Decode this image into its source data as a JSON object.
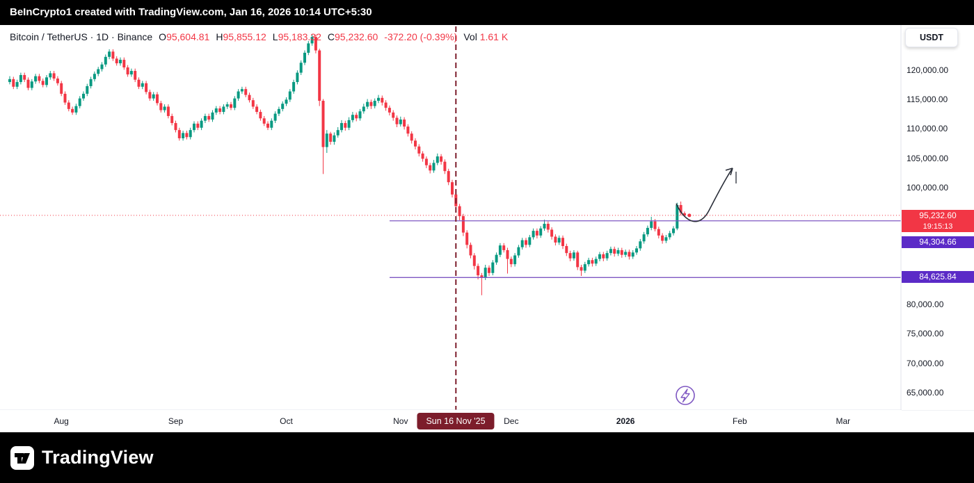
{
  "top_bar": {
    "text": "BeInCrypto1 created with TradingView.com, Jan 16, 2026 10:14 UTC+5:30"
  },
  "header": {
    "symbol": "Bitcoin / TetherUS · 1D · Binance",
    "o_label": "O",
    "o": "95,604.81",
    "h_label": "H",
    "h": "95,855.12",
    "l_label": "L",
    "l": "95,183.32",
    "c_label": "C",
    "c": "95,232.60",
    "change": "-372.20 (-0.39%)",
    "vol_label": "Vol",
    "vol": "1.61 K"
  },
  "currency_button": "USDT",
  "price_axis": {
    "ticks": [
      {
        "value": 120000,
        "label": "120,000.00"
      },
      {
        "value": 115000,
        "label": "115,000.00"
      },
      {
        "value": 110000,
        "label": "110,000.00"
      },
      {
        "value": 105000,
        "label": "105,000.00"
      },
      {
        "value": 100000,
        "label": "100,000.00"
      },
      {
        "value": 80000,
        "label": "80,000.00"
      },
      {
        "value": 75000,
        "label": "75,000.00"
      },
      {
        "value": 70000,
        "label": "70,000.00"
      },
      {
        "value": 65000,
        "label": "65,000.00"
      }
    ]
  },
  "badges": {
    "current_price": "95,232.60",
    "countdown": "19:15:13",
    "level1": "94,304.66",
    "level2": "84,625.84"
  },
  "time_axis": {
    "ticks": [
      {
        "label": "Aug",
        "day": 14
      },
      {
        "label": "Sep",
        "day": 45
      },
      {
        "label": "Oct",
        "day": 75
      },
      {
        "label": "Nov",
        "day": 106
      },
      {
        "label": "Dec",
        "day": 136
      },
      {
        "label": "2026",
        "day": 167,
        "bold": true
      },
      {
        "label": "Feb",
        "day": 198
      },
      {
        "label": "Mar",
        "day": 226
      }
    ],
    "date_badge": "Sun 16 Nov '25"
  },
  "footer": {
    "brand": "TradingView"
  },
  "colors": {
    "up": "#089981",
    "down": "#f23645",
    "level_purple": "#7e57c2",
    "badge_purple": "#5b2bc7",
    "marker_dark_red": "#7c1d2b",
    "axis_line": "#e0e3eb",
    "text_dark": "#131722"
  },
  "chart_data": {
    "type": "candlestick",
    "instrument": "Bitcoin / TetherUS (BTC/USDT)",
    "interval": "1D",
    "exchange": "Binance",
    "values_in": "thousands of USDT, OHLC per daily candle, estimated from chart",
    "ylim_usdt": [
      62000,
      127500
    ],
    "current_price_usdt": 95232.6,
    "levels_usdt": [
      94304.66,
      84625.84
    ],
    "marked_date": {
      "label": "Sun 16 Nov '25",
      "candle_index": 121
    },
    "last_candle_ohlc": {
      "o": 95604.81,
      "h": 95855.12,
      "l": 95183.32,
      "c": 95232.6,
      "change": "-372.20 (-0.39%)",
      "volume": "1.61 K"
    },
    "annotations": {
      "arrow": "hand-drawn curved arrow projecting price upward from ~95,000 toward ~105,000",
      "marker": "purple lightning-bolt circle icon below the Jan 2026 candles",
      "current_price_line": "red dotted horizontal line at 95,232.60",
      "vertical_line": "dark-red dashed vertical line at Sun 16 Nov '25"
    },
    "candles": [
      [
        118,
        119,
        117.6,
        118.5
      ],
      [
        118.5,
        118.9,
        116.8,
        117.2
      ],
      [
        117.2,
        118.4,
        116.8,
        118
      ],
      [
        118,
        119.6,
        117.6,
        119.2
      ],
      [
        119.2,
        119.6,
        118,
        118.4
      ],
      [
        118.4,
        118.8,
        116.6,
        117
      ],
      [
        117,
        118.5,
        116.6,
        118.1
      ],
      [
        118.1,
        119.4,
        117.7,
        119
      ],
      [
        119,
        119.4,
        117.8,
        118.2
      ],
      [
        118.2,
        118.6,
        117.1,
        117.5
      ],
      [
        117.5,
        119.2,
        117.1,
        118.8
      ],
      [
        118.8,
        119.9,
        118.4,
        119.5
      ],
      [
        119.5,
        119.9,
        118.2,
        118.6
      ],
      [
        118.6,
        119,
        117.4,
        117.8
      ],
      [
        117.8,
        118.2,
        115.6,
        116
      ],
      [
        116,
        116.4,
        114.1,
        114.5
      ],
      [
        114.5,
        114.9,
        113,
        113.4
      ],
      [
        113.4,
        113.8,
        112.4,
        112.8
      ],
      [
        112.8,
        114.3,
        112.4,
        113.9
      ],
      [
        113.9,
        115.6,
        113.5,
        115.2
      ],
      [
        115.2,
        116.4,
        114.8,
        116
      ],
      [
        116,
        117.7,
        115.6,
        117.3
      ],
      [
        117.3,
        118.9,
        116.9,
        118.5
      ],
      [
        118.5,
        119.8,
        118.1,
        119.4
      ],
      [
        119.4,
        120.6,
        119,
        120.2
      ],
      [
        120.2,
        121.4,
        119.8,
        121
      ],
      [
        121,
        122.7,
        120.6,
        122.3
      ],
      [
        122.3,
        123.6,
        121.9,
        123.2
      ],
      [
        123.2,
        123.6,
        121.6,
        122
      ],
      [
        122,
        122.4,
        120.8,
        121.2
      ],
      [
        121.2,
        122.2,
        120.8,
        121.8
      ],
      [
        121.8,
        122.2,
        120.1,
        120.5
      ],
      [
        120.5,
        120.9,
        118.9,
        119.3
      ],
      [
        119.3,
        120.3,
        118.9,
        119.9
      ],
      [
        119.9,
        120.3,
        118,
        118.4
      ],
      [
        118.4,
        118.8,
        116.8,
        117.2
      ],
      [
        117.2,
        118.2,
        116.8,
        117.8
      ],
      [
        117.8,
        118.2,
        115.9,
        116.3
      ],
      [
        116.3,
        116.7,
        114.8,
        115.2
      ],
      [
        115.2,
        116.3,
        114.8,
        115.9
      ],
      [
        115.9,
        116.3,
        114,
        114.4
      ],
      [
        114.4,
        114.8,
        112.8,
        113.2
      ],
      [
        113.2,
        114.2,
        112.8,
        113.8
      ],
      [
        113.8,
        114.2,
        111.8,
        112.2
      ],
      [
        112.2,
        112.6,
        110.6,
        111
      ],
      [
        111,
        111.4,
        109.4,
        109.8
      ],
      [
        109.8,
        110.2,
        108,
        108.4
      ],
      [
        108.4,
        109.7,
        108,
        109.3
      ],
      [
        109.3,
        109.7,
        108.2,
        108.6
      ],
      [
        108.6,
        110.2,
        108.2,
        109.8
      ],
      [
        109.8,
        111.3,
        109.4,
        110.9
      ],
      [
        110.9,
        111.3,
        109.8,
        110.2
      ],
      [
        110.2,
        111.8,
        109.8,
        111.4
      ],
      [
        111.4,
        112.6,
        111,
        112.2
      ],
      [
        112.2,
        112.6,
        111.2,
        111.6
      ],
      [
        111.6,
        113.2,
        111.2,
        112.8
      ],
      [
        112.8,
        113.9,
        112.4,
        113.5
      ],
      [
        113.5,
        113.9,
        112.5,
        112.9
      ],
      [
        112.9,
        114.2,
        112.5,
        113.8
      ],
      [
        113.8,
        114.6,
        113.4,
        114.2
      ],
      [
        114.2,
        114.6,
        113.2,
        113.6
      ],
      [
        113.6,
        115.6,
        113.2,
        115.2
      ],
      [
        115.2,
        116.8,
        114.8,
        116.4
      ],
      [
        116.4,
        117.2,
        116,
        116.8
      ],
      [
        116.8,
        117.2,
        115.4,
        115.8
      ],
      [
        115.8,
        116.2,
        114.5,
        114.9
      ],
      [
        114.9,
        115.3,
        113.4,
        113.8
      ],
      [
        113.8,
        114.2,
        112.5,
        112.9
      ],
      [
        112.9,
        113.3,
        111.4,
        111.8
      ],
      [
        111.8,
        112.2,
        110.5,
        110.9
      ],
      [
        110.9,
        111.3,
        109.8,
        110.2
      ],
      [
        110.2,
        111.8,
        109.8,
        111.4
      ],
      [
        111.4,
        113,
        111,
        112.6
      ],
      [
        112.6,
        113.8,
        112.2,
        113.4
      ],
      [
        113.4,
        114.7,
        113,
        114.3
      ],
      [
        114.3,
        115.4,
        113.9,
        115
      ],
      [
        115,
        116.8,
        114.6,
        116.4
      ],
      [
        116.4,
        118.4,
        116,
        118
      ],
      [
        118,
        120,
        117.6,
        119.6
      ],
      [
        119.6,
        121.7,
        119.2,
        121.3
      ],
      [
        121.3,
        123.4,
        120.9,
        123
      ],
      [
        123,
        125,
        122.6,
        124.6
      ],
      [
        124.6,
        126.2,
        124.2,
        125.7
      ],
      [
        125.7,
        126.1,
        122.9,
        123.4
      ],
      [
        123.4,
        123.7,
        113.9,
        114.8
      ],
      [
        114.8,
        115.1,
        102.3,
        106.9
      ],
      [
        106.9,
        109.8,
        105.9,
        109.2
      ],
      [
        109.2,
        109.5,
        107.3,
        107.8
      ],
      [
        107.8,
        109.4,
        107.3,
        108.9
      ],
      [
        108.9,
        110.3,
        108.5,
        109.8
      ],
      [
        109.8,
        111.5,
        109.4,
        111
      ],
      [
        111,
        111.4,
        109.7,
        110.2
      ],
      [
        110.2,
        112,
        109.8,
        111.5
      ],
      [
        111.5,
        112.9,
        111.1,
        112.4
      ],
      [
        112.4,
        112.8,
        111.3,
        111.8
      ],
      [
        111.8,
        113.4,
        111.4,
        113
      ],
      [
        113,
        114.3,
        112.6,
        113.8
      ],
      [
        113.8,
        115.1,
        113.4,
        114.6
      ],
      [
        114.6,
        115,
        113.4,
        113.9
      ],
      [
        113.9,
        115.2,
        113.5,
        114.8
      ],
      [
        114.8,
        115.8,
        114.4,
        115.3
      ],
      [
        115.3,
        115.7,
        114,
        114.5
      ],
      [
        114.5,
        114.9,
        113.1,
        113.6
      ],
      [
        113.6,
        114,
        112.3,
        112.8
      ],
      [
        112.8,
        113.2,
        111.4,
        111.9
      ],
      [
        111.9,
        112.3,
        110.3,
        110.8
      ],
      [
        110.8,
        112.1,
        110.4,
        111.6
      ],
      [
        111.6,
        112,
        109.9,
        110.4
      ],
      [
        110.4,
        110.8,
        108.7,
        109.2
      ],
      [
        109.2,
        109.6,
        107.5,
        108
      ],
      [
        108,
        108.4,
        106.5,
        107
      ],
      [
        107,
        107.4,
        105.3,
        105.8
      ],
      [
        105.8,
        106.2,
        104.4,
        104.9
      ],
      [
        104.9,
        105.3,
        103.3,
        103.8
      ],
      [
        103.8,
        104.2,
        102.4,
        102.9
      ],
      [
        102.9,
        104.7,
        102.5,
        104.2
      ],
      [
        104.2,
        105.8,
        103.8,
        105.3
      ],
      [
        105.3,
        105.7,
        103.9,
        104.4
      ],
      [
        104.4,
        104.8,
        102.3,
        102.8
      ],
      [
        102.8,
        103.2,
        100.4,
        100.9
      ],
      [
        100.9,
        101.3,
        98.3,
        98.8
      ],
      [
        98.8,
        99.2,
        96.2,
        96.8
      ],
      [
        96.8,
        97.2,
        94.4,
        95.1
      ],
      [
        95.1,
        95.5,
        91.7,
        92.3
      ],
      [
        92.3,
        92.7,
        89.6,
        90.2
      ],
      [
        90.2,
        90.6,
        87.9,
        88.4
      ],
      [
        88.4,
        88.8,
        86,
        86.6
      ],
      [
        86.6,
        87,
        84.3,
        85
      ],
      [
        85,
        85.4,
        81.6,
        84.6
      ],
      [
        84.6,
        86.8,
        84.2,
        86.3
      ],
      [
        86.3,
        86.7,
        84.9,
        85.4
      ],
      [
        85.4,
        87.6,
        85,
        87.2
      ],
      [
        87.2,
        88.9,
        86.8,
        88.5
      ],
      [
        88.5,
        90.5,
        88.1,
        90.1
      ],
      [
        90.1,
        90.5,
        88.9,
        89.3
      ],
      [
        89.3,
        89.7,
        85.3,
        87.8
      ],
      [
        87.8,
        88.2,
        86.4,
        86.9
      ],
      [
        86.9,
        88.8,
        86.5,
        88.4
      ],
      [
        88.4,
        90.2,
        88,
        89.8
      ],
      [
        89.8,
        91.4,
        89.4,
        91
      ],
      [
        91,
        91.4,
        89.7,
        90.2
      ],
      [
        90.2,
        91.9,
        89.8,
        91.5
      ],
      [
        91.5,
        93,
        91.1,
        92.6
      ],
      [
        92.6,
        93,
        91.3,
        91.8
      ],
      [
        91.8,
        93.4,
        91.4,
        93
      ],
      [
        93,
        94.5,
        92.6,
        93.8
      ],
      [
        93.8,
        94.2,
        92.3,
        92.8
      ],
      [
        92.8,
        93.2,
        91.1,
        91.6
      ],
      [
        91.6,
        92,
        90.1,
        90.6
      ],
      [
        90.6,
        91.8,
        90.2,
        91.4
      ],
      [
        91.4,
        91.8,
        89.5,
        90
      ],
      [
        90,
        90.4,
        88.3,
        88.8
      ],
      [
        88.8,
        89.2,
        87.4,
        87.9
      ],
      [
        87.9,
        89.3,
        87.5,
        88.9
      ],
      [
        88.9,
        89.2,
        85.9,
        86.4
      ],
      [
        86.4,
        86.8,
        84.9,
        85.8
      ],
      [
        85.8,
        87.3,
        85.4,
        86.9
      ],
      [
        86.9,
        88,
        86.5,
        87.6
      ],
      [
        87.6,
        88,
        86.5,
        87
      ],
      [
        87,
        88.2,
        86.6,
        87.8
      ],
      [
        87.8,
        89,
        87.4,
        88.6
      ],
      [
        88.6,
        89,
        87.4,
        87.9
      ],
      [
        87.9,
        89.2,
        87.5,
        88.8
      ],
      [
        88.8,
        89.9,
        88.4,
        89.5
      ],
      [
        89.5,
        89.9,
        88.2,
        88.7
      ],
      [
        88.7,
        89.7,
        88.3,
        89.3
      ],
      [
        89.3,
        89.7,
        88,
        88.5
      ],
      [
        88.5,
        89.4,
        88.1,
        89
      ],
      [
        89,
        89.4,
        87.7,
        88.2
      ],
      [
        88.2,
        89.3,
        87.8,
        88.9
      ],
      [
        88.9,
        90,
        88.5,
        89.6
      ],
      [
        89.6,
        91.2,
        89.2,
        90.8
      ],
      [
        90.8,
        92.4,
        90.4,
        92
      ],
      [
        92,
        93.5,
        91.6,
        93.1
      ],
      [
        93.1,
        95,
        92.7,
        94.2
      ],
      [
        94.2,
        94.6,
        92.5,
        92.9
      ],
      [
        92.9,
        93.3,
        91.3,
        91.8
      ],
      [
        91.8,
        92.2,
        90.4,
        90.9
      ],
      [
        90.9,
        91.9,
        90.5,
        91.5
      ],
      [
        91.5,
        92.6,
        91.1,
        92.2
      ],
      [
        92.2,
        93.4,
        91.8,
        93
      ],
      [
        93,
        97.4,
        92.7,
        97
      ],
      [
        97,
        97.6,
        95.2,
        95.7
      ],
      [
        95.6,
        95.9,
        95,
        95.2
      ]
    ]
  }
}
